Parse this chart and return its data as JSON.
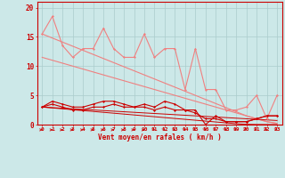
{
  "x": [
    0,
    1,
    2,
    3,
    4,
    5,
    6,
    7,
    8,
    9,
    10,
    11,
    12,
    13,
    14,
    15,
    16,
    17,
    18,
    19,
    20,
    21,
    22,
    23
  ],
  "line1_y": [
    15.5,
    18.5,
    13.5,
    11.5,
    13.0,
    13.0,
    16.5,
    13.0,
    11.5,
    11.5,
    15.5,
    11.5,
    13.0,
    13.0,
    6.0,
    13.0,
    6.0,
    6.0,
    2.5,
    2.5,
    3.0,
    5.0,
    1.0,
    5.0
  ],
  "line3_trendA": [
    15.5,
    14.8,
    14.1,
    13.4,
    12.7,
    12.0,
    11.3,
    10.6,
    9.9,
    9.2,
    8.5,
    7.8,
    7.1,
    6.4,
    5.7,
    5.0,
    4.3,
    3.6,
    2.9,
    2.2,
    1.5,
    1.0,
    0.5,
    0.2
  ],
  "line4_trendB": [
    11.5,
    11.0,
    10.5,
    10.0,
    9.5,
    9.0,
    8.5,
    8.0,
    7.5,
    7.0,
    6.5,
    6.0,
    5.5,
    5.0,
    4.5,
    4.0,
    3.5,
    3.0,
    2.5,
    2.0,
    1.5,
    1.0,
    0.5,
    0.2
  ],
  "line5_y": [
    3.0,
    4.0,
    3.5,
    3.0,
    3.0,
    3.5,
    4.0,
    4.0,
    3.5,
    3.0,
    3.5,
    3.0,
    4.0,
    3.5,
    2.5,
    2.5,
    0.0,
    1.5,
    0.5,
    0.5,
    0.5,
    1.0,
    1.5,
    1.5
  ],
  "line6_y": [
    3.0,
    3.5,
    3.0,
    2.5,
    2.5,
    3.0,
    3.0,
    3.5,
    3.0,
    3.0,
    3.0,
    2.5,
    3.0,
    2.5,
    2.5,
    2.0,
    1.0,
    1.0,
    0.5,
    0.5,
    0.5,
    1.0,
    1.5,
    1.5
  ],
  "line7_trendC": [
    3.0,
    2.9,
    2.8,
    2.7,
    2.6,
    2.5,
    2.4,
    2.3,
    2.2,
    2.1,
    2.0,
    1.9,
    1.8,
    1.7,
    1.6,
    1.5,
    1.4,
    1.3,
    1.2,
    1.1,
    1.0,
    0.9,
    0.8,
    0.7
  ],
  "line8_trendD": [
    3.0,
    2.85,
    2.7,
    2.55,
    2.4,
    2.25,
    2.1,
    1.95,
    1.8,
    1.65,
    1.5,
    1.35,
    1.2,
    1.05,
    0.9,
    0.75,
    0.6,
    0.45,
    0.3,
    0.15,
    0.05,
    0.02,
    0.01,
    0.0
  ],
  "bg_color": "#cce8e8",
  "grid_color": "#aacccc",
  "light_red": "#f08080",
  "dark_red": "#cc0000",
  "xlabel": "Vent moyen/en rafales ( km/h )",
  "xlim": [
    -0.5,
    23.5
  ],
  "ylim": [
    0,
    21
  ],
  "yticks": [
    0,
    5,
    10,
    15,
    20
  ],
  "xticks": [
    0,
    1,
    2,
    3,
    4,
    5,
    6,
    7,
    8,
    9,
    10,
    11,
    12,
    13,
    14,
    15,
    16,
    17,
    18,
    19,
    20,
    21,
    22,
    23
  ]
}
